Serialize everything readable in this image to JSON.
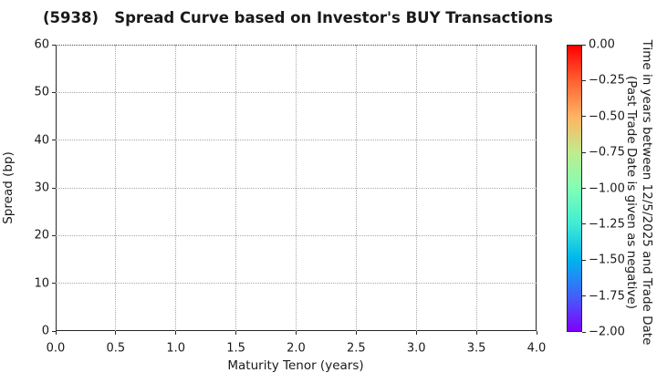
{
  "chart_data": {
    "type": "scatter",
    "title": "(5938)   Spread Curve based on Investor's BUY Transactions",
    "xlabel": "Maturity Tenor (years)",
    "ylabel": "Spread (bp)",
    "xlim": [
      0.0,
      4.0
    ],
    "ylim": [
      0,
      60
    ],
    "xticks": {
      "values": [
        0.0,
        0.5,
        1.0,
        1.5,
        2.0,
        2.5,
        3.0,
        3.5,
        4.0
      ],
      "labels": [
        "0.0",
        "0.5",
        "1.0",
        "1.5",
        "2.0",
        "2.5",
        "3.0",
        "3.5",
        "4.0"
      ]
    },
    "yticks": {
      "values": [
        0,
        10,
        20,
        30,
        40,
        50,
        60
      ],
      "labels": [
        "0",
        "10",
        "20",
        "30",
        "40",
        "50",
        "60"
      ]
    },
    "grid": {
      "visible": true,
      "linestyle": "dotted"
    },
    "legend": "none",
    "points": [],
    "colorbar": {
      "label_line1": "Time in years between 12/5/2025 and Trade Date",
      "label_line2": "(Past Trade Date is given as negative)",
      "range": [
        0,
        -2
      ],
      "colormap": "rainbow",
      "ticks": {
        "values": [
          0,
          -0.25,
          -0.5,
          -0.75,
          -1.0,
          -1.25,
          -1.5,
          -1.75,
          -2.0
        ],
        "labels": [
          "0.00",
          "−0.25",
          "−0.50",
          "−0.75",
          "−1.00",
          "−1.25",
          "−1.50",
          "−1.75",
          "−2.00"
        ]
      },
      "gradient": [
        {
          "pos": 0.0,
          "color": "#ff0000"
        },
        {
          "pos": 0.125,
          "color": "#ff6232"
        },
        {
          "pos": 0.25,
          "color": "#ffb462"
        },
        {
          "pos": 0.375,
          "color": "#bfec8e"
        },
        {
          "pos": 0.5,
          "color": "#80ffb4"
        },
        {
          "pos": 0.625,
          "color": "#40ecd4"
        },
        {
          "pos": 0.75,
          "color": "#00b4ec"
        },
        {
          "pos": 0.875,
          "color": "#4062fa"
        },
        {
          "pos": 1.0,
          "color": "#8000ff"
        }
      ]
    }
  }
}
